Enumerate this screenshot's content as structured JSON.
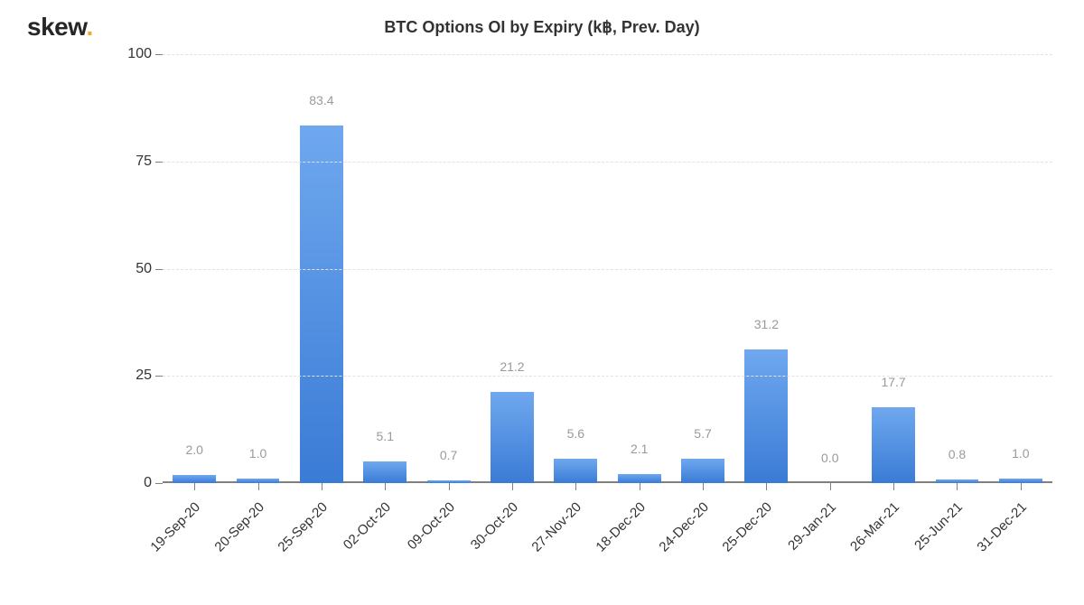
{
  "logo": {
    "text": "skew",
    "dot": "."
  },
  "chart": {
    "type": "bar",
    "title": "BTC Options OI by Expiry (k฿, Prev. Day)",
    "ylim": [
      0,
      100
    ],
    "yticks": [
      0,
      25,
      50,
      75,
      100
    ],
    "grid_color": "#e2e2e2",
    "axis_color": "#808080",
    "background_color": "#ffffff",
    "bar_fill_top": "#6fa8ef",
    "bar_fill_bottom": "#3a7bd5",
    "value_label_color": "#9a9a9a",
    "tick_label_color": "#333333",
    "title_color": "#333333",
    "title_fontsize": 18,
    "tick_fontsize": 16,
    "value_fontsize": 14,
    "bar_width_ratio": 0.68,
    "categories": [
      "19-Sep-20",
      "20-Sep-20",
      "25-Sep-20",
      "02-Oct-20",
      "09-Oct-20",
      "30-Oct-20",
      "27-Nov-20",
      "18-Dec-20",
      "24-Dec-20",
      "25-Dec-20",
      "29-Jan-21",
      "26-Mar-21",
      "25-Jun-21",
      "31-Dec-21"
    ],
    "values": [
      2.0,
      1.0,
      83.4,
      5.1,
      0.7,
      21.2,
      5.6,
      2.1,
      5.7,
      31.2,
      0.0,
      17.7,
      0.8,
      1.0
    ],
    "value_labels": [
      "2.0",
      "1.0",
      "83.4",
      "5.1",
      "0.7",
      "21.2",
      "5.6",
      "2.1",
      "5.7",
      "31.2",
      "0.0",
      "17.7",
      "0.8",
      "1.0"
    ]
  }
}
